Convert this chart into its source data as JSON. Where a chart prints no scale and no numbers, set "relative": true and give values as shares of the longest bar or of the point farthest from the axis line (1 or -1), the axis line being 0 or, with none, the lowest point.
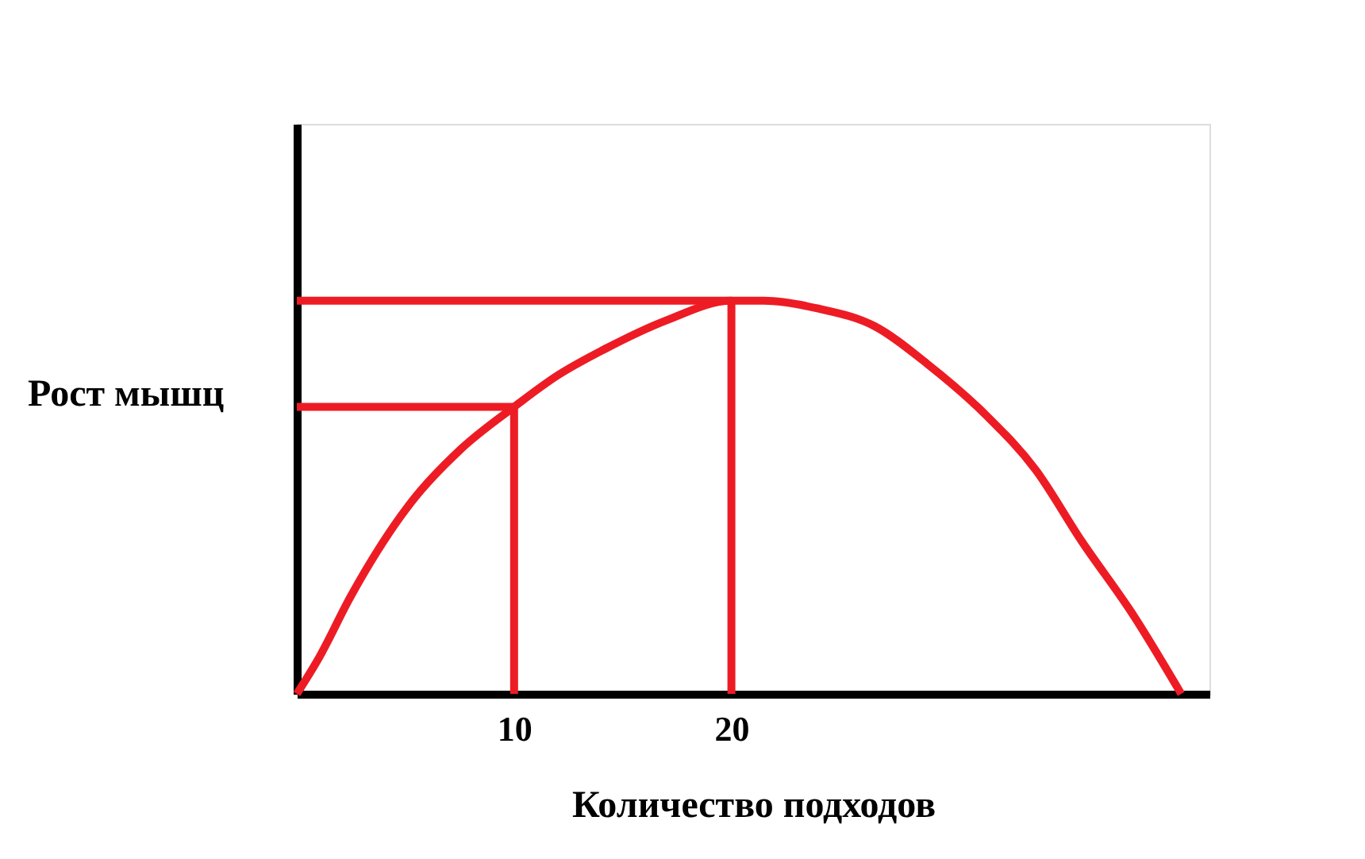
{
  "chart_data": {
    "type": "line",
    "relative": true,
    "xlabel": "Количество подходов",
    "ylabel": "Рост мышц",
    "xlim": [
      0,
      42
    ],
    "xticks": [
      10,
      20
    ],
    "grid": false,
    "marker": "none",
    "line_style": "solid",
    "series": [
      {
        "color": "#ed1c24",
        "x": [
          0,
          1,
          2.5,
          5.3,
          7.5,
          10,
          12,
          14.1,
          17,
          20,
          21.5,
          24,
          26.6,
          29,
          31.7,
          34,
          36.1,
          38.5,
          40.7
        ],
        "values": [
          0,
          0.09,
          0.25,
          0.49,
          0.62,
          0.73,
          0.81,
          0.875,
          0.95,
          1,
          1,
          0.98,
          0.935,
          0.84,
          0.71,
          0.57,
          0.39,
          0.2,
          0
        ]
      },
      {
        "color": "#ed1c24",
        "x": [
          0,
          10,
          10
        ],
        "values": [
          0.73,
          0.73,
          0
        ]
      },
      {
        "color": "#ed1c24",
        "x": [
          0,
          20,
          20
        ],
        "values": [
          1,
          1,
          0
        ]
      }
    ]
  }
}
